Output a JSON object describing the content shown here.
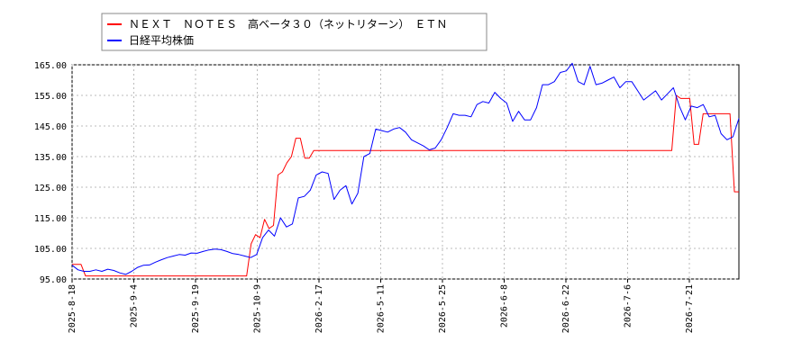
{
  "chart_data": {
    "type": "line",
    "ylim": [
      95,
      165
    ],
    "yticks": [
      "95.00",
      "105.00",
      "115.00",
      "125.00",
      "135.00",
      "145.00",
      "155.00",
      "165.00"
    ],
    "x_ticks": [
      "2025-8-18",
      "2025-9-4",
      "2025-9-19",
      "2025-10-9",
      "2026-2-17",
      "2026-5-11",
      "2026-5-25",
      "2026-6-8",
      "2026-6-22",
      "2026-7-6",
      "2026-7-21"
    ],
    "grid": true,
    "legend_position": "top-left",
    "series": [
      {
        "name": "ＮＥＸＴ　ＮＯＴＥＳ　高ベータ３０（ネットリターン）　ＥＴＮ",
        "color": "#ff0000",
        "values": [
          99.8,
          99.8,
          99.8,
          96,
          96,
          96,
          96,
          96,
          96,
          96,
          96,
          96,
          96,
          96,
          96,
          96,
          96,
          96,
          96,
          96,
          96,
          96,
          96,
          96,
          96,
          96,
          96,
          96,
          96,
          96,
          96,
          96,
          96,
          96,
          96,
          96,
          96,
          96,
          96,
          96,
          106.5,
          109.5,
          108.5,
          114.5,
          111.5,
          112.5,
          129,
          130,
          133,
          135,
          141,
          141,
          134.5,
          134.5,
          137,
          137,
          137,
          137,
          137,
          137,
          137,
          137,
          137,
          137,
          137,
          137,
          137,
          137,
          137,
          137,
          137,
          137,
          137,
          137,
          137,
          137,
          137,
          137,
          137,
          137,
          137,
          137,
          137,
          137,
          137,
          137,
          137,
          137,
          137,
          137,
          137,
          137,
          137,
          137,
          137,
          137,
          137,
          137,
          137,
          137,
          137,
          137,
          137,
          137,
          137,
          137,
          137,
          137,
          137,
          137,
          137,
          137,
          137,
          137,
          137,
          137,
          137,
          137,
          137,
          137,
          137,
          137,
          137,
          137,
          137,
          137,
          137,
          137,
          137,
          137,
          137,
          137,
          137,
          137,
          137,
          155,
          154,
          154,
          154,
          139,
          139,
          149,
          149,
          149,
          149,
          149,
          149,
          149,
          123.5,
          123.5
        ]
      },
      {
        "name": "日経平均株価",
        "color": "#0000ff",
        "values": [
          99.5,
          98,
          97.5,
          97.5,
          98,
          97.5,
          98.2,
          97.8,
          97,
          96.5,
          97.5,
          98.8,
          99.5,
          99.6,
          100.5,
          101.3,
          102,
          102.5,
          103,
          102.8,
          103.5,
          103.4,
          104,
          104.5,
          104.8,
          104.6,
          104,
          103.3,
          103,
          102.5,
          102,
          103,
          108.5,
          111,
          109,
          115,
          112,
          113,
          121.5,
          122,
          124,
          129,
          130,
          129.5,
          121,
          124,
          125.5,
          119.5,
          123,
          135,
          136,
          144,
          143.5,
          143,
          144,
          144.5,
          143,
          140.5,
          139.5,
          138.5,
          137.2,
          137.8,
          140.5,
          144.5,
          149,
          148.5,
          148.5,
          148,
          152,
          153,
          152.5,
          156,
          154,
          152.5,
          146.5,
          149.8,
          147,
          147,
          151,
          158.5,
          158.5,
          159.5,
          162.5,
          163,
          165.5,
          159.5,
          158.5,
          164.5,
          158.5,
          159,
          160,
          161,
          157.5,
          159.5,
          159.5,
          156.5,
          153.5,
          155,
          156.5,
          153.5,
          155.5,
          157.5,
          151.5,
          147,
          151.5,
          151,
          152,
          148,
          148.5,
          142.5,
          140.5,
          141.5,
          147.5
        ]
      }
    ]
  }
}
